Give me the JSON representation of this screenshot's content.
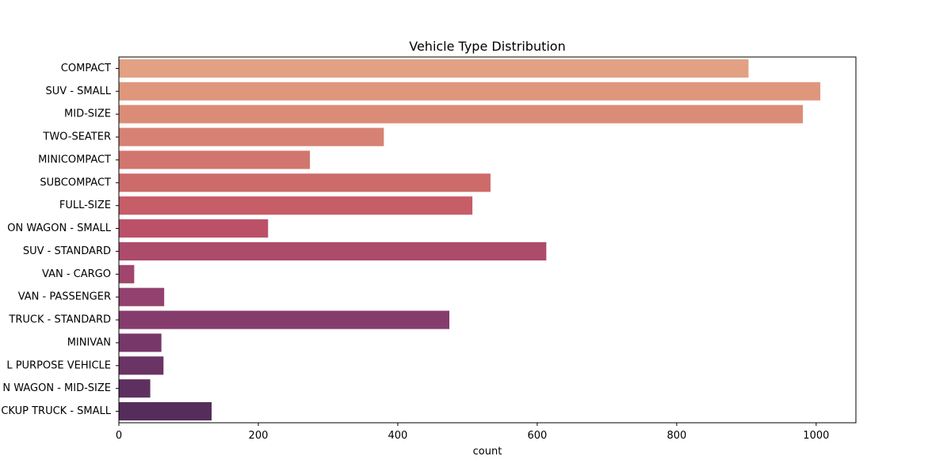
{
  "chart_data": {
    "type": "bar",
    "orientation": "horizontal",
    "title": "Vehicle Type Distribution",
    "xlabel": "count",
    "ylabel": "",
    "xlim": [
      0,
      1057
    ],
    "xticks": [
      0,
      200,
      400,
      600,
      800,
      1000
    ],
    "grid": false,
    "categories": [
      "COMPACT",
      "SUV - SMALL",
      "MID-SIZE",
      "TWO-SEATER",
      "MINICOMPACT",
      "SUBCOMPACT",
      "FULL-SIZE",
      "ON WAGON - SMALL",
      "SUV - STANDARD",
      "VAN - CARGO",
      "VAN - PASSENGER",
      "TRUCK - STANDARD",
      "MINIVAN",
      "L PURPOSE VEHICLE",
      "N WAGON - MID-SIZE",
      "CKUP TRUCK - SMALL"
    ],
    "values": [
      903,
      1006,
      981,
      380,
      274,
      533,
      507,
      214,
      613,
      22,
      65,
      474,
      61,
      64,
      45,
      133
    ],
    "colors": [
      "#e1a182",
      "#de977c",
      "#da8c77",
      "#d68173",
      "#d1766e",
      "#cd6a6a",
      "#c65d67",
      "#bb5168",
      "#ad4b6b",
      "#a0466d",
      "#93416e",
      "#853c6c",
      "#773769",
      "#6a3465",
      "#5e3060",
      "#552d5b"
    ]
  }
}
